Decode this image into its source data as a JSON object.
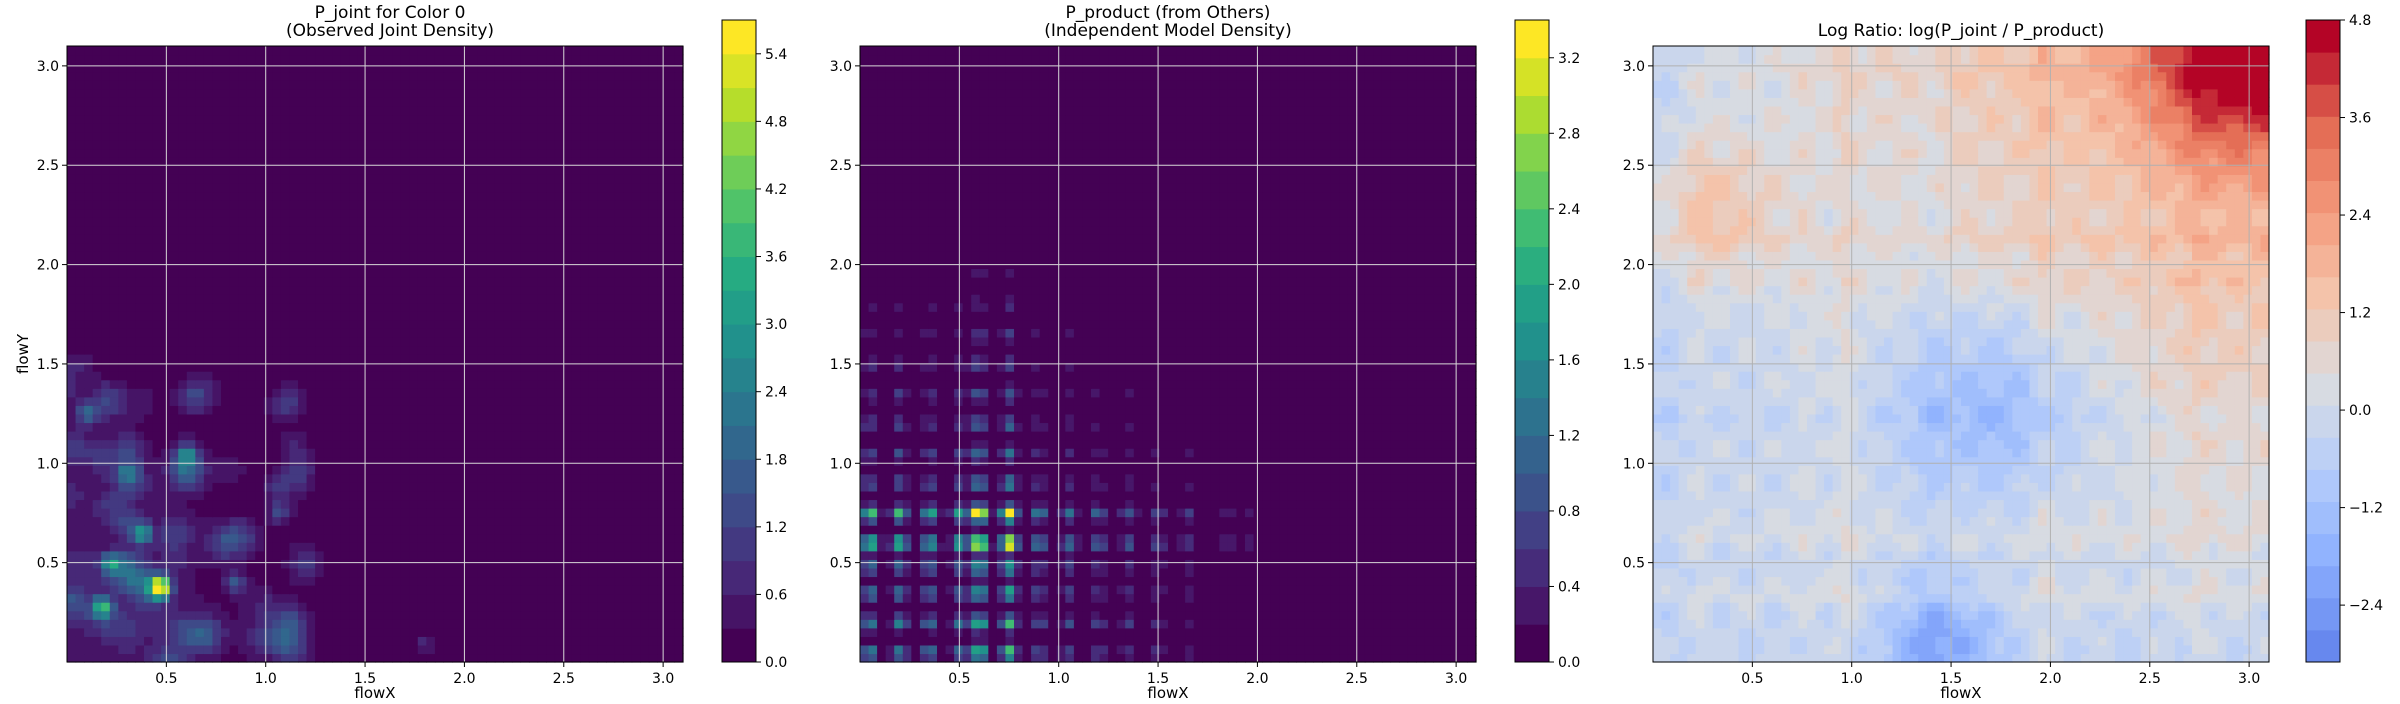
{
  "figure": {
    "panels": [
      {
        "title_line1": "P_joint for Color 0",
        "title_line2": "(Observed Joint Density)",
        "xlabel": "flowX",
        "ylabel": "flowY",
        "colormap": "viridis",
        "colorbar_ticks": [
          "0.0",
          "0.6",
          "1.2",
          "1.8",
          "2.4",
          "3.0",
          "3.6",
          "4.2",
          "4.8",
          "5.4"
        ]
      },
      {
        "title_line1": "P_product (from Others)",
        "title_line2": "(Independent Model Density)",
        "xlabel": "flowX",
        "ylabel": "",
        "colormap": "viridis",
        "colorbar_ticks": [
          "0.0",
          "0.4",
          "0.8",
          "1.2",
          "1.6",
          "2.0",
          "2.4",
          "2.8",
          "3.2"
        ]
      },
      {
        "title_line1": "Log Ratio: log(P_joint / P_product)",
        "title_line2": "",
        "xlabel": "flowX",
        "ylabel": "",
        "colormap": "coolwarm",
        "colorbar_ticks": [
          "−2.4",
          "−1.2",
          "0.0",
          "1.2",
          "2.4",
          "3.6",
          "4.8"
        ]
      }
    ],
    "x_ticks": [
      "0.5",
      "1.0",
      "1.5",
      "2.0",
      "2.5",
      "3.0"
    ],
    "y_ticks": [
      "0.5",
      "1.0",
      "1.5",
      "2.0",
      "2.5",
      "3.0"
    ]
  },
  "chart_data": [
    {
      "type": "heatmap",
      "title": "P_joint for Color 0\n(Observed Joint Density)",
      "xlabel": "flowX",
      "ylabel": "flowY",
      "xlim": [
        0.0,
        3.1
      ],
      "ylim": [
        0.0,
        3.1
      ],
      "clim": [
        0.0,
        5.7
      ],
      "colormap": "viridis",
      "grid": true,
      "hotspots": [
        {
          "x": 0.47,
          "y": 0.38,
          "value": 5.6
        },
        {
          "x": 0.18,
          "y": 0.28,
          "value": 3.0
        },
        {
          "x": 0.38,
          "y": 0.65,
          "value": 2.6
        },
        {
          "x": 0.22,
          "y": 0.5,
          "value": 2.2
        },
        {
          "x": 0.1,
          "y": 1.25,
          "value": 1.8
        },
        {
          "x": 0.6,
          "y": 1.05,
          "value": 1.4
        },
        {
          "x": 0.85,
          "y": 0.4,
          "value": 1.6
        },
        {
          "x": 1.07,
          "y": 0.75,
          "value": 1.2
        },
        {
          "x": 0.3,
          "y": 0.95,
          "value": 1.3
        },
        {
          "x": 1.8,
          "y": 0.1,
          "value": 0.7
        }
      ]
    },
    {
      "type": "heatmap",
      "title": "P_product (from Others)\n(Independent Model Density)",
      "xlabel": "flowX",
      "ylabel": "",
      "xlim": [
        0.0,
        3.1
      ],
      "ylim": [
        0.0,
        3.1
      ],
      "clim": [
        0.0,
        3.4
      ],
      "colormap": "viridis",
      "grid": true,
      "x_marginal_peaks": [
        0.05,
        0.2,
        0.35,
        0.5,
        0.6,
        0.75,
        0.9,
        1.05,
        1.2,
        1.35,
        1.5,
        1.65,
        1.85,
        1.95
      ],
      "y_marginal_peaks": [
        0.05,
        0.2,
        0.35,
        0.48,
        0.6,
        0.75,
        0.9,
        1.05,
        1.2,
        1.35,
        1.5,
        1.65,
        1.8,
        1.95
      ],
      "max_points": [
        {
          "x": 0.6,
          "y": 0.6,
          "value": 3.3
        },
        {
          "x": 0.75,
          "y": 0.6,
          "value": 3.3
        },
        {
          "x": 0.6,
          "y": 0.75,
          "value": 3.2
        },
        {
          "x": 0.75,
          "y": 0.75,
          "value": 3.2
        }
      ]
    },
    {
      "type": "heatmap",
      "title": "Log Ratio: log(P_joint / P_product)",
      "xlabel": "flowX",
      "ylabel": "",
      "xlim": [
        0.0,
        3.1
      ],
      "ylim": [
        0.0,
        3.1
      ],
      "clim": [
        -3.1,
        4.8
      ],
      "colormap": "coolwarm",
      "grid": true,
      "regions": [
        {
          "x": 2.9,
          "y": 3.0,
          "value": 4.5,
          "note": "top-right maximum"
        },
        {
          "x": 2.3,
          "y": 2.5,
          "value": 2.5
        },
        {
          "x": 0.3,
          "y": 2.3,
          "value": 2.0
        },
        {
          "x": 1.7,
          "y": 1.3,
          "value": -1.5
        },
        {
          "x": 1.4,
          "y": 0.1,
          "value": -2.0
        }
      ]
    }
  ]
}
